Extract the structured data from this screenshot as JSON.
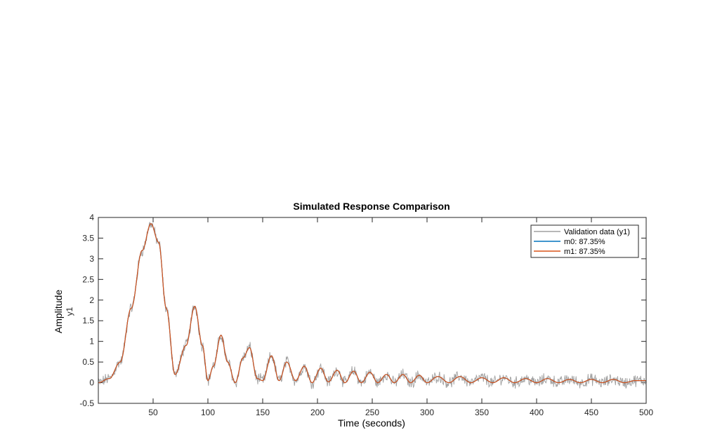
{
  "chart_data": {
    "type": "line",
    "title": "Simulated Response Comparison",
    "xlabel": "Time (seconds)",
    "ylabel": "Amplitude",
    "ylabel_sub": "y1",
    "xlim": [
      0,
      500
    ],
    "ylim": [
      -0.5,
      4
    ],
    "xticks": [
      50,
      100,
      150,
      200,
      250,
      300,
      350,
      400,
      450,
      500
    ],
    "yticks": [
      -0.5,
      0,
      0.5,
      1,
      1.5,
      2,
      2.5,
      3,
      3.5,
      4
    ],
    "grid": false,
    "legend_position": "top-right",
    "series": [
      {
        "name": "Validation data (y1)",
        "color": "#a0a0a0",
        "role": "noisy"
      },
      {
        "name": "m0: 87.35%",
        "color": "#0072bd",
        "role": "model"
      },
      {
        "name": "m1: 87.35%",
        "color": "#d95319",
        "role": "model"
      }
    ],
    "model_response": {
      "x": [
        0,
        10,
        20,
        30,
        40,
        48,
        55,
        62,
        70,
        80,
        88,
        95,
        100,
        105,
        112,
        118,
        125,
        132,
        138,
        145,
        150,
        158,
        165,
        172,
        180,
        188,
        195,
        203,
        210,
        218,
        225,
        233,
        240,
        248,
        255,
        263,
        270,
        278,
        285,
        293,
        300,
        310,
        320,
        330,
        340,
        350,
        360,
        370,
        380,
        390,
        400,
        410,
        420,
        430,
        440,
        450,
        460,
        470,
        480,
        490,
        500
      ],
      "y": [
        0.0,
        0.1,
        0.5,
        1.8,
        3.2,
        3.85,
        3.4,
        1.8,
        0.2,
        0.9,
        1.85,
        0.9,
        0.05,
        0.4,
        1.15,
        0.5,
        0.0,
        0.6,
        0.85,
        0.1,
        0.05,
        0.65,
        0.05,
        0.5,
        0.05,
        0.4,
        0.0,
        0.35,
        0.02,
        0.3,
        0.0,
        0.28,
        0.0,
        0.25,
        0.0,
        0.2,
        0.0,
        0.2,
        0.0,
        0.18,
        0.0,
        0.15,
        0.0,
        0.15,
        0.0,
        0.12,
        0.0,
        0.12,
        0.0,
        0.1,
        0.0,
        0.1,
        0.0,
        0.08,
        0.0,
        0.08,
        0.0,
        0.08,
        0.0,
        0.05,
        0.05
      ]
    }
  }
}
